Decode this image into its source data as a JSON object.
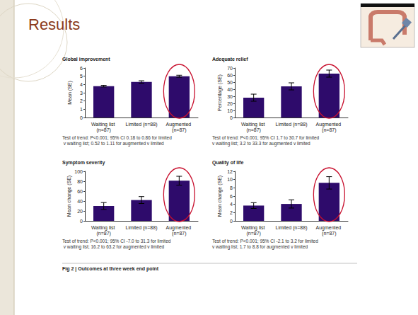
{
  "slide": {
    "title": "Results",
    "caption": "Fig 2 | Outcomes at three week end point"
  },
  "chart_data": [
    {
      "type": "bar",
      "title": "Global improvement",
      "y_label": "Mean (SE)",
      "categories": [
        "Waiting list (n=87)",
        "Limited (n=88)",
        "Augmented (n=87)"
      ],
      "values": [
        3.8,
        4.3,
        5.0
      ],
      "errors": [
        0.1,
        0.15,
        0.12
      ],
      "color": "#2e0b6b",
      "ylim": [
        0,
        6
      ],
      "yticks": [
        0,
        1,
        2,
        3,
        4,
        5,
        6
      ],
      "grid": false,
      "annotation": "Test of trend: P<0.001; 95% CI 0.18 to 0.86 for limited v waiting list; 0.52 to 1.11 for augmented v limited"
    },
    {
      "type": "bar",
      "title": "Adequate relief",
      "y_label": "Percentage (SE)",
      "categories": [
        "Waiting list (n=87)",
        "Limited (n=88)",
        "Augmented (n=87)"
      ],
      "values": [
        28,
        44,
        62
      ],
      "errors": [
        5,
        5,
        5
      ],
      "color": "#2e0b6b",
      "ylim": [
        0,
        70
      ],
      "yticks": [
        0,
        10,
        20,
        30,
        40,
        50,
        60,
        70
      ],
      "grid": false,
      "annotation": "Test of trend: P<0.001; 95% CI 1.7 to 30.7 for limited v waiting list; 3.2 to 33.3 for augmented v limited"
    },
    {
      "type": "bar",
      "title": "Symptom severity",
      "y_label": "Mean change (SE)",
      "categories": [
        "Waiting list (n=87)",
        "Limited (n=88)",
        "Augmented (n=87)"
      ],
      "values": [
        30,
        42,
        81
      ],
      "errors": [
        7,
        7,
        9
      ],
      "color": "#2e0b6b",
      "ylim": [
        0,
        100
      ],
      "yticks": [
        0,
        20,
        40,
        60,
        80,
        100
      ],
      "grid": false,
      "annotation": "Test of trend: P<0.001; 95% CI -7.0 to 31.3 for limited v waiting list; 16.2 to 63.2 for augmented v limited"
    },
    {
      "type": "bar",
      "title": "Quality of life",
      "y_label": "Mean change (SE)",
      "categories": [
        "Waiting list (n=87)",
        "Limited (n=88)",
        "Augmented (n=87)"
      ],
      "values": [
        3.7,
        4.1,
        9.2
      ],
      "errors": [
        0.7,
        1.0,
        1.5
      ],
      "color": "#2e0b6b",
      "ylim": [
        0,
        12
      ],
      "yticks": [
        0,
        2,
        4,
        6,
        8,
        10,
        12
      ],
      "grid": false,
      "annotation": "Test of trend: P<0.001; 95% CI -2.1 to 3.2 for limited v waiting list; 1.7 to 8.8 for augmented v limited"
    }
  ]
}
